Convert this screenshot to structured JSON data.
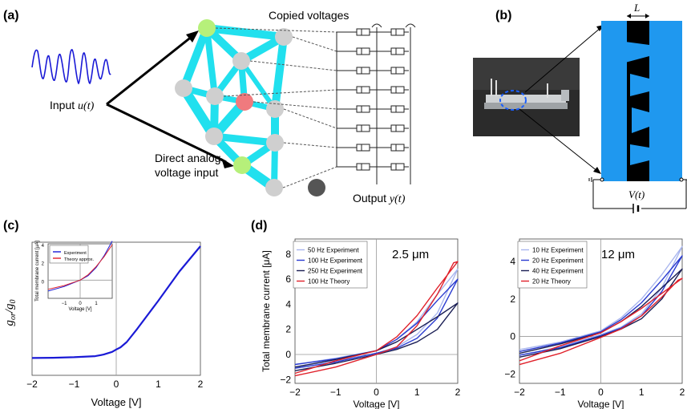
{
  "panels": {
    "a": {
      "label": "(a)",
      "copied_voltages": "Copied voltages",
      "input_label": "Input",
      "input_var": "u(t)",
      "direct_line1": "Direct analog",
      "direct_line2": "voltage input",
      "output_label": "Output",
      "output_var": "y(t)"
    },
    "b": {
      "label": "(b)",
      "length_symbol": "L",
      "source_label": "V(t)"
    },
    "c": {
      "label": "(c)"
    },
    "d": {
      "label": "(d)"
    }
  },
  "chart_data": [
    {
      "id": "c-main",
      "type": "line",
      "xlabel": "Voltage [V]",
      "ylabel_main": "g",
      "ylabel_main_sub": "or",
      "ylabel_den": "g",
      "ylabel_den_sub": "0",
      "xlim": [
        -2,
        2
      ],
      "ylim": [
        0,
        5
      ],
      "xticks": [
        "-2",
        "-1",
        "0",
        "1",
        "2"
      ],
      "yticks": [],
      "series": [
        {
          "color": "#1a1ad6",
          "x": [
            -2,
            -1.5,
            -1,
            -0.5,
            -0.3,
            -0.1,
            0,
            0.1,
            0.25,
            0.5,
            1,
            1.5,
            2
          ],
          "y": [
            0.65,
            0.66,
            0.68,
            0.72,
            0.78,
            0.88,
            0.97,
            1.05,
            1.25,
            1.75,
            2.8,
            3.9,
            4.85
          ]
        }
      ]
    },
    {
      "id": "c-inset",
      "type": "line",
      "xlabel": "Voltage [V]",
      "ylabel": "Total membrane current [μA]",
      "xlim": [
        -2,
        2
      ],
      "ylim": [
        -2,
        4
      ],
      "xticks": [
        "-1",
        "0",
        "1"
      ],
      "yticks": [
        "0",
        "2",
        "4"
      ],
      "legend": [
        "Experiment",
        "Theory approx."
      ],
      "series": [
        {
          "name": "Experiment",
          "color": "#1a1ad6",
          "x": [
            -2,
            -1,
            -0.5,
            0,
            0.5,
            1,
            1.5,
            2
          ],
          "y": [
            -1.2,
            -0.7,
            -0.35,
            0,
            0.5,
            1.4,
            2.7,
            4.3
          ]
        },
        {
          "name": "Theory approx.",
          "color": "#e0202a",
          "x": [
            -2,
            -1,
            -0.5,
            0,
            0.5,
            1,
            1.5,
            2
          ],
          "y": [
            -1.0,
            -0.6,
            -0.3,
            0,
            0.6,
            1.5,
            2.6,
            3.9
          ]
        }
      ]
    },
    {
      "id": "d-left",
      "type": "line",
      "title": "2.5 μm",
      "xlabel": "Voltage [V]",
      "ylabel": "Total membrane current [μA]",
      "xlim": [
        -2,
        2
      ],
      "ylim": [
        -2.3,
        9.2
      ],
      "xticks": [
        "-2",
        "-1",
        "0",
        "1",
        "2"
      ],
      "yticks": [
        "-2",
        "0",
        "2",
        "4",
        "6",
        "8"
      ],
      "legend": [
        "50 Hz Experiment",
        "100 Hz Experiment",
        "250 Hz Experiment",
        "100 Hz Theory"
      ],
      "series": [
        {
          "name": "50 Hz Experiment",
          "color": "#a9b6ee",
          "x": [
            -2,
            -1,
            0,
            0.5,
            1,
            1.5,
            2,
            1.5,
            1,
            0.5,
            0,
            -1,
            -2
          ],
          "y": [
            -1.0,
            -0.5,
            0.1,
            0.6,
            1.6,
            3.3,
            6.8,
            4.8,
            2.6,
            1.2,
            0.3,
            -0.3,
            -0.8
          ]
        },
        {
          "name": "100 Hz Experiment",
          "color": "#2a3bd0",
          "x": [
            -2,
            -1,
            0,
            0.5,
            1,
            1.5,
            2,
            1.5,
            1,
            0.5,
            0,
            -1,
            -2
          ],
          "y": [
            -1.1,
            -0.6,
            0.1,
            0.5,
            1.3,
            2.9,
            6.0,
            4.3,
            2.5,
            1.2,
            0.3,
            -0.35,
            -0.8
          ]
        },
        {
          "name": "250 Hz Experiment",
          "color": "#1b1f55",
          "x": [
            -2,
            -1,
            0,
            0.5,
            1,
            1.5,
            2,
            1.5,
            1,
            0.5,
            0,
            -1,
            -2
          ],
          "y": [
            -1.3,
            -0.7,
            0.0,
            0.4,
            1.0,
            2.0,
            4.1,
            3.0,
            2.0,
            1.0,
            0.3,
            -0.4,
            -1.0
          ]
        },
        {
          "name": "100 Hz Theory",
          "color": "#e0202a",
          "x": [
            -2,
            -1,
            0,
            0.5,
            1,
            1.5,
            1.9,
            2,
            1.5,
            1,
            0.5,
            0,
            -1,
            -2
          ],
          "y": [
            -1.7,
            -1.0,
            0.0,
            0.6,
            2.3,
            4.8,
            7.3,
            7.4,
            5.3,
            3.1,
            1.4,
            0.3,
            -0.5,
            -1.5
          ]
        }
      ]
    },
    {
      "id": "d-right",
      "type": "line",
      "title": "12 μm",
      "xlabel": "Voltage [V]",
      "ylabel": "",
      "xlim": [
        -2,
        2
      ],
      "ylim": [
        -2.5,
        5.2
      ],
      "xticks": [
        "-2",
        "-1",
        "0",
        "1",
        "2"
      ],
      "yticks": [
        "-2",
        "0",
        "2",
        "4"
      ],
      "legend": [
        "10 Hz Experiment",
        "20 Hz Experiment",
        "40 Hz Experiment",
        "20 Hz Theory"
      ],
      "series": [
        {
          "name": "10 Hz Experiment",
          "color": "#a9b6ee",
          "x": [
            -2,
            -1,
            0,
            0.5,
            1,
            1.5,
            2,
            1.5,
            1,
            0.5,
            0,
            -1,
            -2
          ],
          "y": [
            -1.0,
            -0.55,
            0.1,
            0.5,
            1.2,
            2.6,
            4.8,
            3.3,
            2.0,
            1.0,
            0.3,
            -0.3,
            -0.7
          ]
        },
        {
          "name": "20 Hz Experiment",
          "color": "#2a3bd0",
          "x": [
            -2,
            -1,
            0,
            0.5,
            1,
            1.5,
            2,
            1.5,
            1,
            0.5,
            0,
            -1,
            -2
          ],
          "y": [
            -1.0,
            -0.6,
            0.05,
            0.45,
            1.1,
            2.4,
            4.3,
            3.0,
            1.8,
            0.9,
            0.25,
            -0.35,
            -0.8
          ]
        },
        {
          "name": "40 Hz Experiment",
          "color": "#1b1f55",
          "x": [
            -2,
            -1,
            0,
            0.5,
            1,
            1.5,
            2,
            1.5,
            1,
            0.5,
            0,
            -1,
            -2
          ],
          "y": [
            -1.1,
            -0.65,
            0.0,
            0.4,
            0.95,
            2.0,
            3.6,
            2.6,
            1.6,
            0.8,
            0.2,
            -0.4,
            -0.9
          ]
        },
        {
          "name": "20 Hz Theory",
          "color": "#e0202a",
          "x": [
            -2,
            -1,
            0,
            0.5,
            1,
            1.5,
            1.9,
            2,
            1.5,
            1,
            0.5,
            0,
            -1,
            -2
          ],
          "y": [
            -1.5,
            -0.9,
            -0.05,
            0.4,
            1.1,
            2.1,
            3.0,
            3.1,
            2.3,
            1.5,
            0.8,
            0.2,
            -0.5,
            -1.3
          ]
        }
      ]
    }
  ]
}
